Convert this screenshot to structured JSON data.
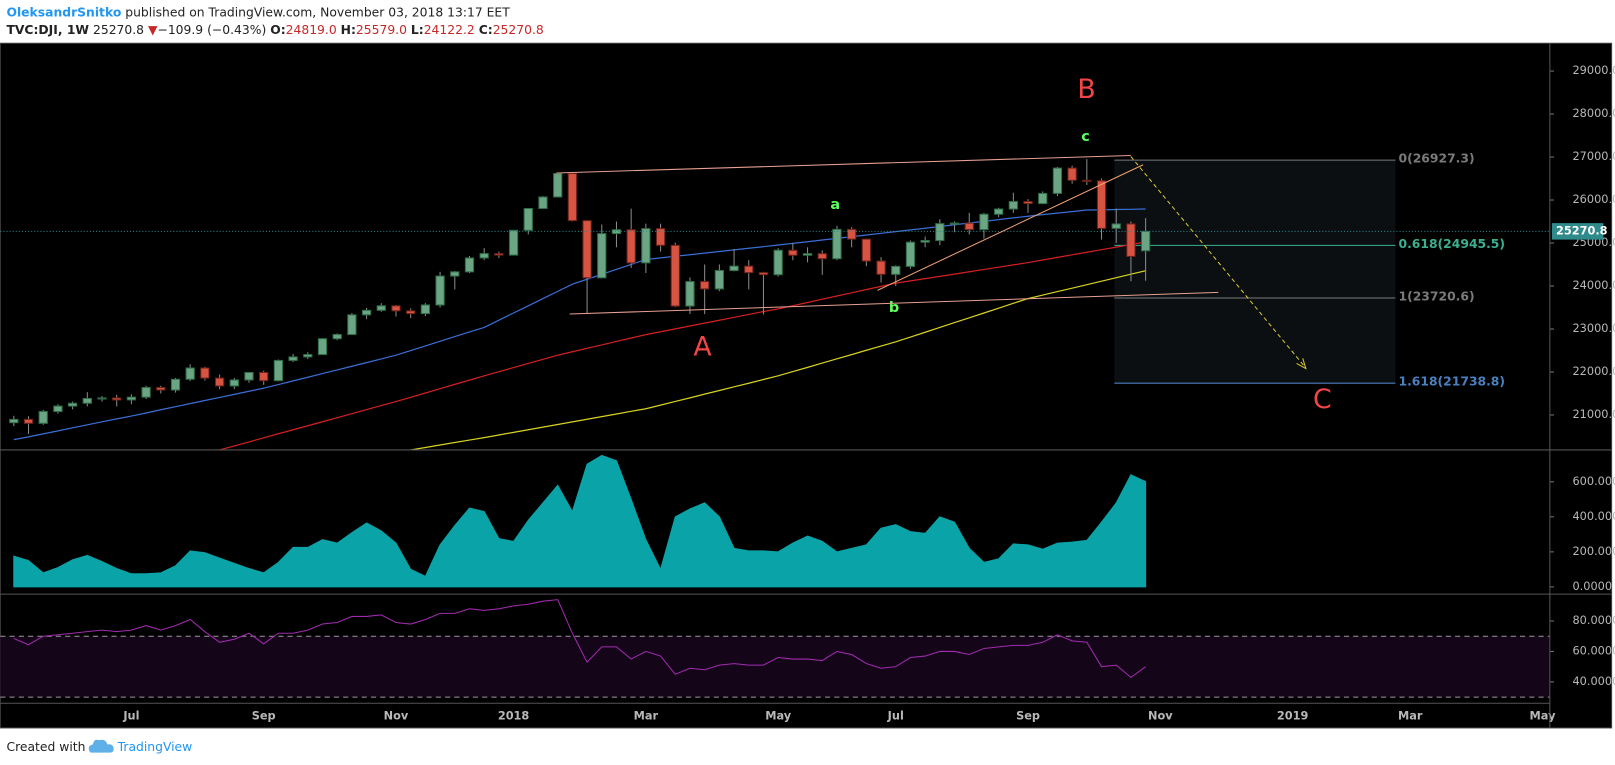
{
  "header": {
    "author": "OleksandrSnitko",
    "published": "published on TradingView.com, November 03, 2018 13:17 EET",
    "symbol": "TVC:DJI, 1W",
    "last": "25270.8",
    "arrow": "▼",
    "change": "−109.9 (−0.43%)",
    "open_label": "O:",
    "open": "24819.0",
    "high_label": "H:",
    "high": "25579.0",
    "low_label": "L:",
    "low": "24122.2",
    "close_label": "C:",
    "close": "25270.8"
  },
  "footer": {
    "created": "Created with",
    "brand": "TradingView"
  },
  "chart_data": [
    {
      "type": "candlestick",
      "categories": [
        null,
        null,
        null,
        null,
        null,
        null,
        null,
        null,
        "Jul",
        null,
        null,
        null,
        null,
        null,
        null,
        null,
        null,
        "Sep",
        null,
        null,
        null,
        null,
        null,
        null,
        null,
        null,
        "Nov",
        null,
        null,
        null,
        null,
        null,
        null,
        null,
        "2018",
        null,
        null,
        null,
        null,
        null,
        null,
        null,
        null,
        "Mar",
        null,
        null,
        null,
        null,
        null,
        null,
        null,
        null,
        "May",
        null,
        null,
        null,
        null,
        null,
        null,
        null,
        "Jul",
        null,
        null,
        null,
        null,
        null,
        null,
        null,
        null,
        "Sep",
        null,
        null,
        null,
        null,
        null,
        null,
        null,
        null,
        "Nov",
        null,
        null,
        null,
        null,
        null,
        null,
        null,
        null,
        "2019",
        null,
        null,
        null,
        null,
        null,
        null,
        null,
        "Mar",
        null,
        null,
        null,
        null,
        null,
        null,
        null,
        null,
        "May"
      ],
      "open": [
        20820,
        20897,
        20805,
        21080,
        21206,
        21272,
        21384,
        21395,
        21350,
        21414,
        21638,
        21580,
        21830,
        22092,
        21858,
        21675,
        21814,
        21988,
        21798,
        22268,
        22350,
        22405,
        22774,
        22871,
        23329,
        23434,
        23539,
        23422,
        23358,
        23558,
        24231,
        24329,
        24652,
        24754,
        24719,
        25295,
        25803,
        26071,
        26616,
        25520,
        24190,
        25219,
        25309,
        24538,
        25335,
        24946,
        23533,
        24103,
        23932,
        24360,
        24462,
        24311,
        24263,
        24831,
        24715,
        24753,
        24635,
        25317,
        25090,
        24580,
        24271,
        24456,
        25019,
        25058,
        25451,
        25463,
        25313,
        25669,
        25790,
        25965,
        25917,
        26154,
        26743,
        26458,
        26447,
        25340,
        25444,
        24819.0,
        null,
        null,
        null,
        null,
        null,
        null,
        null,
        null,
        null,
        null,
        null,
        null,
        null,
        null,
        null,
        null,
        null,
        null,
        null,
        null,
        null,
        null,
        null,
        null,
        null,
        null,
        null
      ],
      "high": [
        20980,
        20970,
        21120,
        21250,
        21310,
        21530,
        21440,
        21470,
        21480,
        21680,
        21680,
        21860,
        22180,
        22120,
        21940,
        21860,
        22000,
        22030,
        22290,
        22420,
        22460,
        22790,
        22900,
        23370,
        23490,
        23600,
        23560,
        23480,
        23600,
        24330,
        24350,
        24700,
        24880,
        24800,
        25300,
        25810,
        26090,
        26617,
        26616,
        25520,
        25432,
        25500,
        25800,
        25450,
        25450,
        25010,
        24200,
        24500,
        24500,
        24860,
        24600,
        24330,
        24880,
        25000,
        24900,
        24830,
        25400,
        25370,
        25100,
        24670,
        24480,
        25060,
        25150,
        25550,
        25500,
        25700,
        25700,
        25820,
        26170,
        26020,
        26200,
        26770,
        26800,
        26951,
        26500,
        25800,
        25500,
        25579.0,
        null,
        null,
        null,
        null,
        null,
        null,
        null,
        null,
        null,
        null,
        null,
        null,
        null,
        null,
        null,
        null,
        null,
        null,
        null,
        null,
        null,
        null,
        null,
        null,
        null,
        null,
        null
      ],
      "low": [
        20740,
        20560,
        20770,
        21030,
        21130,
        21200,
        21310,
        21200,
        21250,
        21370,
        21500,
        21520,
        21790,
        21800,
        21600,
        21600,
        21750,
        21700,
        21780,
        22230,
        22300,
        22400,
        22740,
        22860,
        23230,
        23400,
        23290,
        23250,
        23300,
        23500,
        23920,
        24300,
        24600,
        24650,
        24710,
        25200,
        25800,
        26070,
        25500,
        23360,
        24179,
        24900,
        24420,
        24300,
        24800,
        23510,
        23350,
        23345,
        23880,
        24340,
        23920,
        23340,
        24220,
        24600,
        24550,
        24260,
        24600,
        24900,
        24460,
        24080,
        24000,
        24400,
        24900,
        24950,
        25250,
        25200,
        25100,
        25600,
        25700,
        25700,
        25900,
        26090,
        26380,
        26350,
        25080,
        25000,
        24110,
        24122.2,
        null,
        null,
        null,
        null,
        null,
        null,
        null,
        null,
        null,
        null,
        null,
        null,
        null,
        null,
        null,
        null,
        null,
        null,
        null,
        null,
        null,
        null,
        null,
        null,
        null,
        null,
        null
      ],
      "close": [
        20897,
        20805,
        21080,
        21206,
        21272,
        21384,
        21395,
        21350,
        21414,
        21638,
        21580,
        21830,
        22092,
        21858,
        21675,
        21814,
        21988,
        21798,
        22268,
        22350,
        22405,
        22774,
        22871,
        23329,
        23434,
        23539,
        23422,
        23358,
        23558,
        24231,
        24329,
        24652,
        24754,
        24719,
        25295,
        25803,
        26071,
        26616,
        25520,
        24190,
        25219,
        25309,
        24538,
        25335,
        24946,
        23533,
        24103,
        23932,
        24360,
        24462,
        24311,
        24263,
        24831,
        24715,
        24753,
        24635,
        25317,
        25090,
        24580,
        24271,
        24456,
        25019,
        25058,
        25451,
        25463,
        25313,
        25669,
        25790,
        25965,
        25917,
        26154,
        26743,
        26458,
        26447,
        25340,
        25444,
        24688,
        25270.8,
        null,
        null,
        null,
        null,
        null,
        null,
        null,
        null,
        null,
        null,
        null,
        null,
        null,
        null,
        null,
        null,
        null,
        null,
        null,
        null,
        null,
        null,
        null,
        null,
        null,
        null,
        null
      ],
      "up_color": "#6ba583",
      "down_color": "#d75442",
      "wick_color": "#8a8a8a",
      "lines": [
        {
          "color": "#3a6fd8",
          "values": [
            20425,
            20490,
            20560,
            20630,
            20700,
            20770,
            20840,
            20910,
            20975,
            21047,
            21119,
            21191,
            21263,
            21335,
            21407,
            21479,
            21551,
            21623,
            21708,
            21793,
            21878,
            21963,
            22048,
            22133,
            22218,
            22303,
            22390,
            22498,
            22606,
            22714,
            22822,
            22930,
            23036,
            23204,
            23372,
            23540,
            23707,
            23875,
            24042,
            24157,
            24272,
            24387,
            24502,
            24617,
            24654,
            24691,
            24728,
            24765,
            24802,
            24840,
            24877,
            24914,
            24952,
            24991,
            25030,
            25069,
            25108,
            25147,
            25186,
            25225,
            25264,
            25304,
            25344,
            25384,
            25424,
            25464,
            25504,
            25544,
            25584,
            25623,
            25659,
            25695,
            25731,
            25766,
            25772,
            25778,
            25784,
            25790,
            null,
            null,
            null,
            null,
            null,
            null,
            null,
            null,
            null,
            null,
            null,
            null,
            null,
            null,
            null,
            null,
            null,
            null,
            null,
            null,
            null,
            null,
            null,
            null,
            null,
            null,
            null
          ]
        },
        {
          "color": "#d42020",
          "values": [
            null,
            null,
            null,
            null,
            null,
            null,
            null,
            null,
            null,
            null,
            null,
            null,
            null,
            null,
            20186,
            20280,
            20374,
            20468,
            20562,
            20655,
            20749,
            20843,
            20936,
            21030,
            21124,
            21218,
            21311,
            21411,
            21511,
            21611,
            21711,
            21811,
            21910,
            22006,
            22102,
            22198,
            22294,
            22390,
            22470,
            22550,
            22630,
            22710,
            22790,
            22868,
            22935,
            23002,
            23069,
            23136,
            23203,
            23270,
            23337,
            23404,
            23467,
            23542,
            23617,
            23692,
            23767,
            23842,
            23917,
            23992,
            24066,
            24119,
            24172,
            24225,
            24278,
            24331,
            24384,
            24437,
            24490,
            24545,
            24605,
            24665,
            24725,
            24785,
            24845,
            24905,
            24965,
            25024,
            null,
            null,
            null,
            null,
            null,
            null,
            null,
            null,
            null,
            null,
            null,
            null,
            null,
            null,
            null,
            null,
            null,
            null,
            null,
            null,
            null,
            null,
            null,
            null,
            null,
            null,
            null
          ]
        },
        {
          "color": "#d8d21c",
          "values": [
            null,
            null,
            null,
            null,
            null,
            null,
            null,
            null,
            null,
            null,
            null,
            null,
            null,
            null,
            null,
            null,
            null,
            null,
            null,
            null,
            null,
            null,
            null,
            null,
            null,
            null,
            null,
            20186,
            20243,
            20300,
            20358,
            20415,
            20473,
            20534,
            20595,
            20656,
            20717,
            20778,
            20839,
            20900,
            20961,
            21022,
            21083,
            21144,
            21229,
            21314,
            21399,
            21484,
            21569,
            21654,
            21739,
            21824,
            21910,
            22009,
            22108,
            22207,
            22306,
            22405,
            22504,
            22603,
            22700,
            22812,
            22924,
            23036,
            23148,
            23260,
            23372,
            23484,
            23596,
            23707,
            23788,
            23869,
            23950,
            24031,
            24112,
            24193,
            24274,
            24353,
            null,
            null,
            null,
            null,
            null,
            null,
            null,
            null,
            null,
            null,
            null,
            null,
            null,
            null,
            null,
            null,
            null,
            null,
            null,
            null,
            null,
            null,
            null,
            null,
            null,
            null,
            null
          ]
        }
      ],
      "ylim": [
        20186,
        29647
      ],
      "yticks": [
        {
          "value": 21000,
          "label": "21000.0"
        },
        {
          "value": 22000,
          "label": "22000.0"
        },
        {
          "value": 23000,
          "label": "23000.0"
        },
        {
          "value": 24000,
          "label": "24000.0"
        },
        {
          "value": 25000,
          "label": "25000.0"
        },
        {
          "value": 26000,
          "label": "26000.0"
        },
        {
          "value": 27000,
          "label": "27000.0"
        },
        {
          "value": 28000,
          "label": "28000.0"
        },
        {
          "value": 29000,
          "label": "29000.0"
        }
      ],
      "last_price": {
        "value": 25270.8,
        "label": "25270.8",
        "color": "#2f8a8c"
      },
      "fib_levels": [
        {
          "value": 26927.3,
          "label": "0(26927.3)",
          "color": "#7a7a7a"
        },
        {
          "value": 24945.5,
          "label": "0.618(24945.5)",
          "color": "#3bb08f"
        },
        {
          "value": 23720.6,
          "label": "1(23720.6)",
          "color": "#7a7a7a"
        },
        {
          "value": 21738.8,
          "label": "1.618(21738.8)",
          "color": "#4a7fc0"
        }
      ],
      "annotations": [
        {
          "text": "B",
          "color": "#f24545"
        },
        {
          "text": "c",
          "color": "#5cff5c"
        },
        {
          "text": "a",
          "color": "#5cff5c"
        },
        {
          "text": "b",
          "color": "#5cff5c"
        },
        {
          "text": "A",
          "color": "#f24545"
        },
        {
          "text": "C",
          "color": "#f24545"
        }
      ]
    },
    {
      "type": "area",
      "color": "#0aa3a8",
      "values": [
        176,
        150,
        80,
        110,
        155,
        180,
        145,
        105,
        75,
        75,
        80,
        120,
        205,
        195,
        165,
        135,
        105,
        80,
        140,
        225,
        225,
        270,
        250,
        310,
        365,
        320,
        250,
        100,
        60,
        240,
        350,
        450,
        430,
        275,
        260,
        380,
        480,
        580,
        430,
        700,
        750,
        720,
        500,
        270,
        100,
        400,
        445,
        480,
        400,
        220,
        205,
        205,
        200,
        250,
        290,
        260,
        200,
        220,
        240,
        335,
        355,
        315,
        305,
        400,
        370,
        220,
        140,
        160,
        245,
        240,
        215,
        250,
        255,
        265,
        370,
        480,
        640,
        600
      ],
      "ylim": [
        -41,
        776
      ],
      "yticks": [
        {
          "value": 600,
          "label": "600.000"
        },
        {
          "value": 400,
          "label": "400.000"
        },
        {
          "value": 200,
          "label": "200.000"
        },
        {
          "value": 0,
          "label": "0.0000"
        }
      ]
    },
    {
      "type": "line",
      "color": "#a22bb0",
      "band_color": "#150519",
      "values": [
        68.5,
        64.4,
        70,
        71,
        72,
        73,
        74,
        73,
        74,
        77,
        74,
        77,
        81,
        73,
        66,
        68,
        72,
        65,
        72,
        72,
        74,
        78,
        79,
        83,
        83,
        84,
        79,
        78,
        81,
        85,
        85,
        88,
        87,
        88,
        90,
        91,
        93,
        94,
        72,
        53,
        63,
        63,
        55,
        60,
        57,
        45,
        49,
        48,
        51,
        52,
        51,
        51,
        56,
        55,
        55,
        54,
        60,
        58,
        52,
        49,
        50,
        56,
        57,
        60,
        60,
        58,
        62,
        63,
        64,
        64,
        66,
        71,
        67,
        66,
        50,
        51,
        43,
        50
      ],
      "bands": [
        70,
        30
      ],
      "ylim": [
        26,
        97
      ],
      "yticks": [
        {
          "value": 80,
          "label": "80.0000"
        },
        {
          "value": 60,
          "label": "60.0000"
        },
        {
          "value": 40,
          "label": "40.0000"
        }
      ]
    }
  ]
}
